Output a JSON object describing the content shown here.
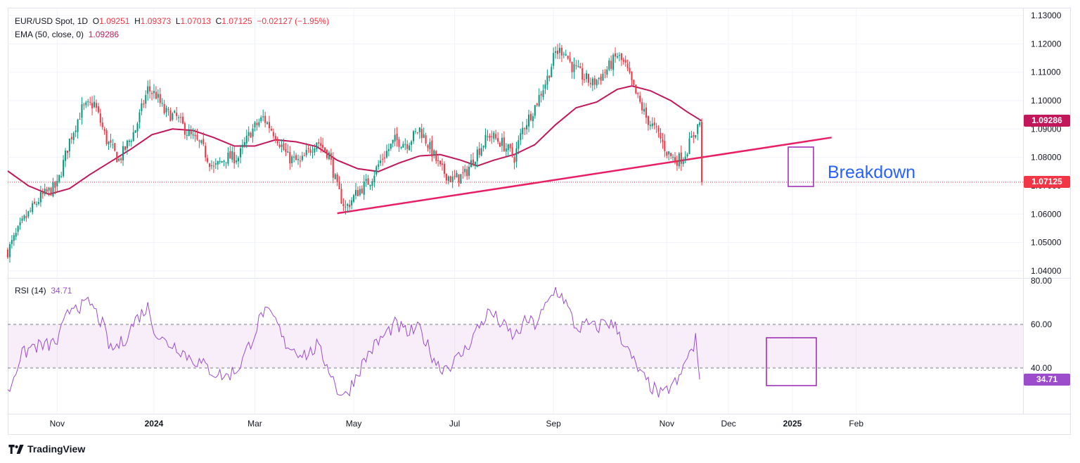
{
  "legend": {
    "symbol": "EUR/USD Spot, 1D",
    "o_label": "O",
    "o_value": "1.09251",
    "h_label": "H",
    "h_value": "1.09373",
    "l_label": "L",
    "l_value": "1.07013",
    "c_label": "C",
    "c_value": "1.07125",
    "change": "−0.02127 (−1.95%)",
    "ema_label": "EMA (50, close, 0)",
    "ema_value": "1.09286",
    "rsi_label": "RSI (14)",
    "rsi_value": "34.71"
  },
  "badges": {
    "ema": "1.09286",
    "price": "1.07125",
    "rsi": "34.71"
  },
  "annotation": {
    "text": "Breakdown"
  },
  "brand": {
    "name": "TradingView"
  },
  "colors": {
    "up": "#089981",
    "down": "#f23645",
    "ema": "#c2185b",
    "trend": "#e91e63",
    "rsi": "#9c4dcc",
    "box": "#9c27b0",
    "annotation": "#2962ff"
  },
  "chart_data": [
    {
      "type": "candlestick",
      "title": "EUR/USD Spot, 1D",
      "x_tick_labels": [
        "Nov",
        "2024",
        "Mar",
        "May",
        "Jul",
        "Sep",
        "Nov",
        "Dec",
        "2025",
        "Feb"
      ],
      "y_tick_labels": [
        "1.04000",
        "1.05000",
        "1.06000",
        "1.07000",
        "1.08000",
        "1.09000",
        "1.10000",
        "1.11000",
        "1.12000",
        "1.13000"
      ],
      "ylim": [
        1.0375,
        1.1325
      ],
      "y_ticks": [
        1.04,
        1.05,
        1.06,
        1.07,
        1.08,
        1.09,
        1.1,
        1.11,
        1.12,
        1.13
      ],
      "x_range_days": [
        0,
        493
      ],
      "x_tick_days": [
        24,
        71,
        120,
        168,
        217,
        265,
        320,
        350,
        381,
        412
      ],
      "last_candle": {
        "open": 1.09251,
        "high": 1.09373,
        "low": 1.07013,
        "close": 1.07125
      },
      "close_path": [
        [
          0,
          1.047
        ],
        [
          8,
          1.058
        ],
        [
          16,
          1.066
        ],
        [
          24,
          1.07
        ],
        [
          30,
          1.086
        ],
        [
          36,
          1.097
        ],
        [
          42,
          1.099
        ],
        [
          48,
          1.086
        ],
        [
          54,
          1.079
        ],
        [
          62,
          1.09
        ],
        [
          68,
          1.104
        ],
        [
          72,
          1.102
        ],
        [
          76,
          1.096
        ],
        [
          82,
          1.094
        ],
        [
          88,
          1.088
        ],
        [
          94,
          1.084
        ],
        [
          100,
          1.076
        ],
        [
          106,
          1.08
        ],
        [
          112,
          1.08
        ],
        [
          118,
          1.089
        ],
        [
          124,
          1.094
        ],
        [
          130,
          1.088
        ],
        [
          136,
          1.08
        ],
        [
          142,
          1.078
        ],
        [
          150,
          1.086
        ],
        [
          156,
          1.081
        ],
        [
          160,
          1.069
        ],
        [
          164,
          1.062
        ],
        [
          170,
          1.068
        ],
        [
          176,
          1.072
        ],
        [
          182,
          1.08
        ],
        [
          188,
          1.086
        ],
        [
          194,
          1.085
        ],
        [
          200,
          1.09
        ],
        [
          206,
          1.082
        ],
        [
          210,
          1.076
        ],
        [
          216,
          1.072
        ],
        [
          222,
          1.074
        ],
        [
          228,
          1.082
        ],
        [
          234,
          1.088
        ],
        [
          240,
          1.085
        ],
        [
          246,
          1.08
        ],
        [
          250,
          1.09
        ],
        [
          256,
          1.098
        ],
        [
          262,
          1.108
        ],
        [
          266,
          1.117
        ],
        [
          270,
          1.118
        ],
        [
          274,
          1.112
        ],
        [
          280,
          1.108
        ],
        [
          284,
          1.106
        ],
        [
          290,
          1.11
        ],
        [
          296,
          1.116
        ],
        [
          300,
          1.112
        ],
        [
          304,
          1.104
        ],
        [
          310,
          1.094
        ],
        [
          316,
          1.088
        ],
        [
          320,
          1.082
        ],
        [
          324,
          1.079
        ],
        [
          328,
          1.08
        ],
        [
          333,
          1.088
        ],
        [
          336,
          1.0925
        ],
        [
          337,
          1.07125
        ]
      ],
      "ema50": [
        [
          0,
          1.0752
        ],
        [
          10,
          1.07
        ],
        [
          20,
          1.067
        ],
        [
          30,
          1.069
        ],
        [
          40,
          1.074
        ],
        [
          50,
          1.0785
        ],
        [
          60,
          1.083
        ],
        [
          70,
          1.088
        ],
        [
          80,
          1.09
        ],
        [
          90,
          1.0895
        ],
        [
          100,
          1.087
        ],
        [
          110,
          1.084
        ],
        [
          120,
          1.084
        ],
        [
          130,
          1.0862
        ],
        [
          140,
          1.0855
        ],
        [
          150,
          1.0838
        ],
        [
          160,
          1.079
        ],
        [
          170,
          1.076
        ],
        [
          180,
          1.075
        ],
        [
          190,
          1.078
        ],
        [
          200,
          1.0805
        ],
        [
          210,
          1.081
        ],
        [
          220,
          1.079
        ],
        [
          228,
          1.077
        ],
        [
          236,
          1.079
        ],
        [
          246,
          1.081
        ],
        [
          256,
          1.0845
        ],
        [
          266,
          1.0915
        ],
        [
          276,
          1.0975
        ],
        [
          286,
          1.0995
        ],
        [
          296,
          1.104
        ],
        [
          303,
          1.1052
        ],
        [
          312,
          1.1035
        ],
        [
          322,
          1.1
        ],
        [
          330,
          1.096
        ],
        [
          337,
          1.09286
        ]
      ],
      "trendline": [
        [
          160,
          1.0603
        ],
        [
          400,
          1.087
        ]
      ],
      "ema_last": 1.09286,
      "price_last": 1.07125
    },
    {
      "type": "line",
      "title": "RSI (14)",
      "y_tick_labels": [
        "40.00",
        "60.00",
        "80.00"
      ],
      "y_ticks": [
        40,
        60,
        80
      ],
      "ylim": [
        19,
        81
      ],
      "band": [
        40,
        60
      ],
      "last": 34.71,
      "points": [
        [
          0,
          28
        ],
        [
          6,
          45
        ],
        [
          12,
          50
        ],
        [
          18,
          50
        ],
        [
          24,
          52
        ],
        [
          28,
          62
        ],
        [
          32,
          70
        ],
        [
          36,
          68
        ],
        [
          40,
          70
        ],
        [
          46,
          60
        ],
        [
          50,
          48
        ],
        [
          56,
          52
        ],
        [
          62,
          62
        ],
        [
          68,
          68
        ],
        [
          72,
          56
        ],
        [
          76,
          52
        ],
        [
          82,
          50
        ],
        [
          88,
          45
        ],
        [
          94,
          42
        ],
        [
          100,
          38
        ],
        [
          106,
          36
        ],
        [
          112,
          40
        ],
        [
          118,
          52
        ],
        [
          124,
          66
        ],
        [
          130,
          62
        ],
        [
          134,
          52
        ],
        [
          140,
          48
        ],
        [
          146,
          46
        ],
        [
          150,
          50
        ],
        [
          156,
          40
        ],
        [
          160,
          30
        ],
        [
          164,
          27
        ],
        [
          170,
          38
        ],
        [
          176,
          48
        ],
        [
          182,
          54
        ],
        [
          188,
          60
        ],
        [
          194,
          56
        ],
        [
          200,
          58
        ],
        [
          206,
          46
        ],
        [
          210,
          40
        ],
        [
          216,
          42
        ],
        [
          222,
          48
        ],
        [
          228,
          58
        ],
        [
          234,
          66
        ],
        [
          240,
          60
        ],
        [
          246,
          54
        ],
        [
          252,
          62
        ],
        [
          256,
          60
        ],
        [
          260,
          66
        ],
        [
          266,
          76
        ],
        [
          270,
          72
        ],
        [
          276,
          58
        ],
        [
          282,
          60
        ],
        [
          286,
          58
        ],
        [
          290,
          62
        ],
        [
          296,
          58
        ],
        [
          302,
          46
        ],
        [
          308,
          36
        ],
        [
          314,
          30
        ],
        [
          318,
          27
        ],
        [
          322,
          32
        ],
        [
          326,
          34
        ],
        [
          330,
          46
        ],
        [
          333,
          48
        ],
        [
          334,
          53
        ],
        [
          336,
          34.71
        ]
      ]
    }
  ]
}
